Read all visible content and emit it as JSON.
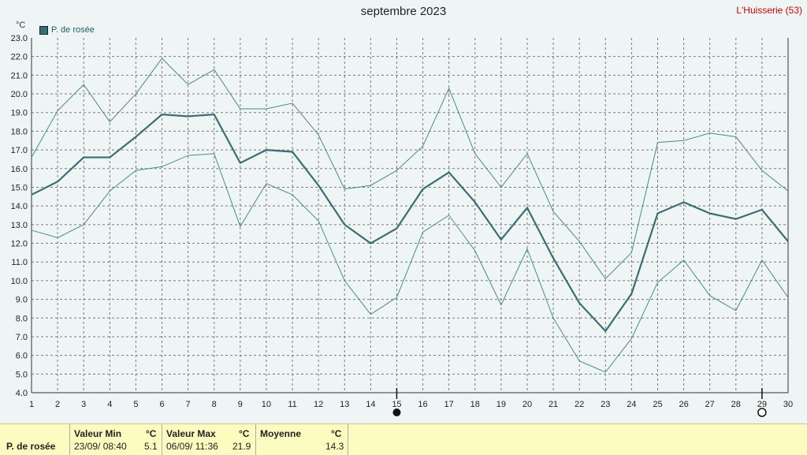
{
  "header": {
    "title": "septembre 2023",
    "station": "L'Huisserie (53)",
    "unit": "°C"
  },
  "legend": {
    "label": "P. de rosée",
    "color": "#3a6e72"
  },
  "colors": {
    "background": "#eef5f4",
    "plot_background": "#eef5f4",
    "grid": "#7a7a7a",
    "series": "#3a6e72",
    "envelope": "#4a8a8c",
    "title_station": "#d10000",
    "stats_background": "#fcfcc0"
  },
  "chart_data": {
    "type": "line",
    "title": "septembre 2023",
    "ylabel": "°C",
    "ylim": [
      4.0,
      23.0
    ],
    "xlim": [
      1,
      30
    ],
    "grid": true,
    "legend_position": "top-left",
    "x": [
      1,
      2,
      3,
      4,
      5,
      6,
      7,
      8,
      9,
      10,
      11,
      12,
      13,
      14,
      15,
      16,
      17,
      18,
      19,
      20,
      21,
      22,
      23,
      24,
      25,
      26,
      27,
      28,
      29,
      30
    ],
    "y_ticks": [
      "4.0",
      "5.0",
      "6.0",
      "7.0",
      "8.0",
      "9.0",
      "10.0",
      "11.0",
      "12.0",
      "13.0",
      "14.0",
      "15.0",
      "16.0",
      "17.0",
      "18.0",
      "19.0",
      "20.0",
      "21.0",
      "22.0",
      "23.0"
    ],
    "x_ticks": [
      "1",
      "2",
      "3",
      "4",
      "5",
      "6",
      "7",
      "8",
      "9",
      "10",
      "11",
      "12",
      "13",
      "14",
      "15",
      "16",
      "17",
      "18",
      "19",
      "20",
      "21",
      "22",
      "23",
      "24",
      "25",
      "26",
      "27",
      "28",
      "29",
      "30"
    ],
    "series": [
      {
        "name": "P. de rosée",
        "role": "mean",
        "values": [
          14.6,
          15.3,
          16.6,
          16.6,
          17.7,
          18.9,
          18.8,
          18.9,
          16.3,
          17.0,
          16.9,
          15.1,
          13.0,
          12.0,
          12.8,
          14.9,
          15.8,
          14.2,
          12.2,
          13.9,
          11.2,
          8.8,
          7.3,
          9.3,
          13.6,
          14.2,
          13.6,
          13.3,
          13.8,
          12.1
        ]
      },
      {
        "role": "max",
        "values": [
          16.6,
          19.1,
          20.5,
          18.5,
          20.0,
          21.9,
          20.5,
          21.3,
          19.2,
          19.2,
          19.5,
          17.8,
          14.9,
          15.1,
          15.9,
          17.2,
          20.3,
          16.8,
          15.0,
          16.8,
          13.7,
          12.1,
          10.1,
          11.5,
          17.4,
          17.5,
          17.9,
          17.7,
          15.9,
          14.8
        ]
      },
      {
        "role": "min",
        "values": [
          12.7,
          12.3,
          13.0,
          14.8,
          15.9,
          16.1,
          16.7,
          16.8,
          12.9,
          15.2,
          14.6,
          13.2,
          10.0,
          8.2,
          9.1,
          12.6,
          13.5,
          11.6,
          8.7,
          11.7,
          8.0,
          5.7,
          5.1,
          6.9,
          9.9,
          11.1,
          9.2,
          8.4,
          11.1,
          9.1
        ]
      }
    ],
    "moon_phases": [
      {
        "day": 15,
        "phase": "new-moon"
      },
      {
        "day": 29,
        "phase": "full-moon"
      }
    ]
  },
  "stats": {
    "row_label": "P. de rosée",
    "min_header": "Valeur Min",
    "min_unit": "°C",
    "min_time": "23/09/  08:40",
    "min_value": "5.1",
    "max_header": "Valeur Max",
    "max_unit": "°C",
    "max_time": "06/09/  11:36",
    "max_value": "21.9",
    "avg_header": "Moyenne",
    "avg_unit": "°C",
    "avg_value": "14.3"
  }
}
